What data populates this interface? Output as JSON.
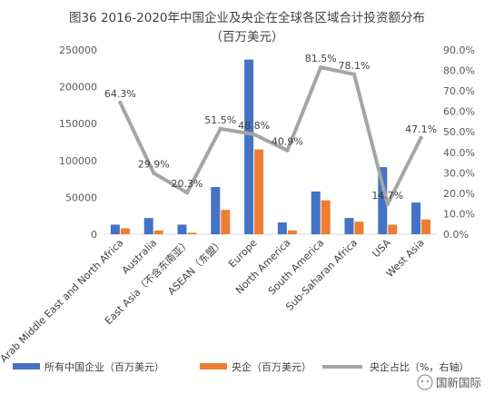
{
  "chart_data": {
    "type": "bar",
    "title": "图36 2016-2020年中国企业及央企在全球各区域合计投资额分布",
    "subtitle": "（百万美元）",
    "categories": [
      "Arab Middle East and North Africa",
      "Australia",
      "East Asia（不含东南亚）",
      "ASEAN（东盟）",
      "Europe",
      "North America",
      "South America",
      "Sub-Saharan Africa",
      "USA",
      "West Asia"
    ],
    "series": [
      {
        "name": "所有中国企业（百万美元）",
        "kind": "bar",
        "axis": "left",
        "color": "#4472C4",
        "values": [
          13000,
          22000,
          13000,
          64000,
          237000,
          16000,
          58000,
          22000,
          91000,
          43000
        ]
      },
      {
        "name": "央企（百万美元）",
        "kind": "bar",
        "axis": "left",
        "color": "#ED7D31",
        "values": [
          8000,
          5000,
          2000,
          33000,
          115000,
          5000,
          46000,
          17000,
          13000,
          20000
        ]
      },
      {
        "name": "央企占比（%，右轴）",
        "kind": "line",
        "axis": "right",
        "color": "#A5A5A5",
        "values": [
          64.3,
          29.9,
          20.3,
          51.5,
          48.8,
          40.9,
          81.5,
          78.1,
          14.7,
          47.1
        ]
      }
    ],
    "point_labels": [
      "64.3%",
      "29.9%",
      "20.3%",
      "51.5%",
      "48.8%",
      "40.9%",
      "81.5%",
      "78.1%",
      "14.7%",
      "47.1%"
    ],
    "ylim_left": [
      0,
      250000
    ],
    "yticks_left": [
      0,
      50000,
      100000,
      150000,
      200000,
      250000
    ],
    "ytick_labels_left": [
      "0",
      "50000",
      "100000",
      "150000",
      "200000",
      "250000"
    ],
    "ylim_right": [
      0,
      90
    ],
    "yticks_right": [
      0,
      10,
      20,
      30,
      40,
      50,
      60,
      70,
      80,
      90
    ],
    "ytick_labels_right": [
      "0.0%",
      "10.0%",
      "20.0%",
      "30.0%",
      "40.0%",
      "50.0%",
      "60.0%",
      "70.0%",
      "80.0%",
      "90.0%"
    ],
    "grid": false,
    "legend_position": "bottom"
  },
  "watermark": {
    "text": "国新国际"
  }
}
